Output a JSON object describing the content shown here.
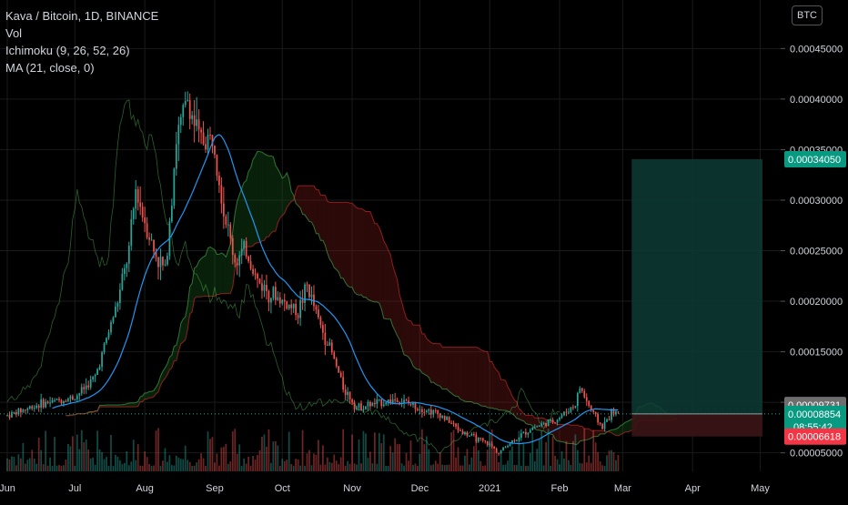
{
  "legend": {
    "symbol": "Kava / Bitcoin, 1D, BINANCE",
    "vol": "Vol",
    "ichimoku": "Ichimoku (9, 26, 52, 26)",
    "ma": "MA (21, close, 0)"
  },
  "currency_button": "BTC",
  "price_tags": {
    "target": "0.00034050",
    "upper": "0.00009731",
    "current": "0.00008854",
    "countdown": "08:55:42",
    "stop": "0.00006618"
  },
  "colors": {
    "background": "#000000",
    "up": "#26a69a",
    "down": "#ef5350",
    "ma": "#2196f3",
    "target_zone": "#0d3b35",
    "stop_zone": "#3b1416",
    "cloud_green": "#1b5e20",
    "cloud_red": "#7f1d1d"
  },
  "chart_data": {
    "type": "candlestick",
    "y_axis": {
      "ticks": [
        "0.00005000",
        "0.00010000",
        "0.00015000",
        "0.00020000",
        "0.00025000",
        "0.00030000",
        "0.00035000",
        "0.00040000",
        "0.00045000"
      ],
      "tick_values": [
        5e-05,
        0.0001,
        0.00015,
        0.0002,
        0.00025,
        0.0003,
        0.00035,
        0.0004,
        0.00045
      ],
      "range": [
        3.17e-05,
        0.00048
      ]
    },
    "x_axis": {
      "ticks": [
        "Jun",
        "Jul",
        "Aug",
        "Sep",
        "Oct",
        "Nov",
        "Dec",
        "2021",
        "Feb",
        "Mar",
        "Apr",
        "May"
      ],
      "tick_dates": [
        "2020-06-01",
        "2020-07-01",
        "2020-08-01",
        "2020-09-01",
        "2020-10-01",
        "2020-11-01",
        "2020-12-01",
        "2021-01-01",
        "2021-02-01",
        "2021-03-01",
        "2021-04-01",
        "2021-05-01"
      ],
      "range": [
        "2020-06-01",
        "2021-05-02"
      ]
    },
    "grid": true,
    "close_path": [
      {
        "date": "2020-06-01",
        "close": 8.7e-05
      },
      {
        "date": "2020-06-15",
        "close": 9.8e-05
      },
      {
        "date": "2020-07-01",
        "close": 0.000105
      },
      {
        "date": "2020-07-10",
        "close": 0.000125
      },
      {
        "date": "2020-07-20",
        "close": 0.0002
      },
      {
        "date": "2020-07-25",
        "close": 0.00025
      },
      {
        "date": "2020-07-28",
        "close": 0.00031
      },
      {
        "date": "2020-08-05",
        "close": 0.00025
      },
      {
        "date": "2020-08-10",
        "close": 0.00023
      },
      {
        "date": "2020-08-15",
        "close": 0.00036
      },
      {
        "date": "2020-08-20",
        "close": 0.0004
      },
      {
        "date": "2020-08-25",
        "close": 0.00036
      },
      {
        "date": "2020-09-01",
        "close": 0.00036
      },
      {
        "date": "2020-09-05",
        "close": 0.00029
      },
      {
        "date": "2020-09-10",
        "close": 0.00024
      },
      {
        "date": "2020-09-15",
        "close": 0.00025
      },
      {
        "date": "2020-09-20",
        "close": 0.00022
      },
      {
        "date": "2020-09-25",
        "close": 0.00021
      },
      {
        "date": "2020-10-01",
        "close": 0.0002
      },
      {
        "date": "2020-10-08",
        "close": 0.00019
      },
      {
        "date": "2020-10-12",
        "close": 0.000215
      },
      {
        "date": "2020-10-18",
        "close": 0.000175
      },
      {
        "date": "2020-10-22",
        "close": 0.000155
      },
      {
        "date": "2020-10-28",
        "close": 0.000115
      },
      {
        "date": "2020-11-03",
        "close": 9.5e-05
      },
      {
        "date": "2020-11-10",
        "close": 9.8e-05
      },
      {
        "date": "2020-11-20",
        "close": 0.000103
      },
      {
        "date": "2020-12-01",
        "close": 9.5e-05
      },
      {
        "date": "2020-12-10",
        "close": 8.8e-05
      },
      {
        "date": "2020-12-20",
        "close": 7e-05
      },
      {
        "date": "2021-01-01",
        "close": 5.8e-05
      },
      {
        "date": "2021-01-05",
        "close": 5e-05
      },
      {
        "date": "2021-01-10",
        "close": 6e-05
      },
      {
        "date": "2021-01-20",
        "close": 7.5e-05
      },
      {
        "date": "2021-01-30",
        "close": 8.2e-05
      },
      {
        "date": "2021-02-08",
        "close": 9.8e-05
      },
      {
        "date": "2021-02-10",
        "close": 0.000115
      },
      {
        "date": "2021-02-15",
        "close": 9.2e-05
      },
      {
        "date": "2021-02-20",
        "close": 7.5e-05
      },
      {
        "date": "2021-02-24",
        "close": 9e-05
      },
      {
        "date": "2021-02-27",
        "close": 8.85e-05
      }
    ],
    "position": {
      "entry": 8.854e-05,
      "target": 0.0003405,
      "stop": 6.618e-05,
      "upper_line": 9.731e-05,
      "start_date": "2021-03-05",
      "end_date": "2021-05-02"
    }
  }
}
